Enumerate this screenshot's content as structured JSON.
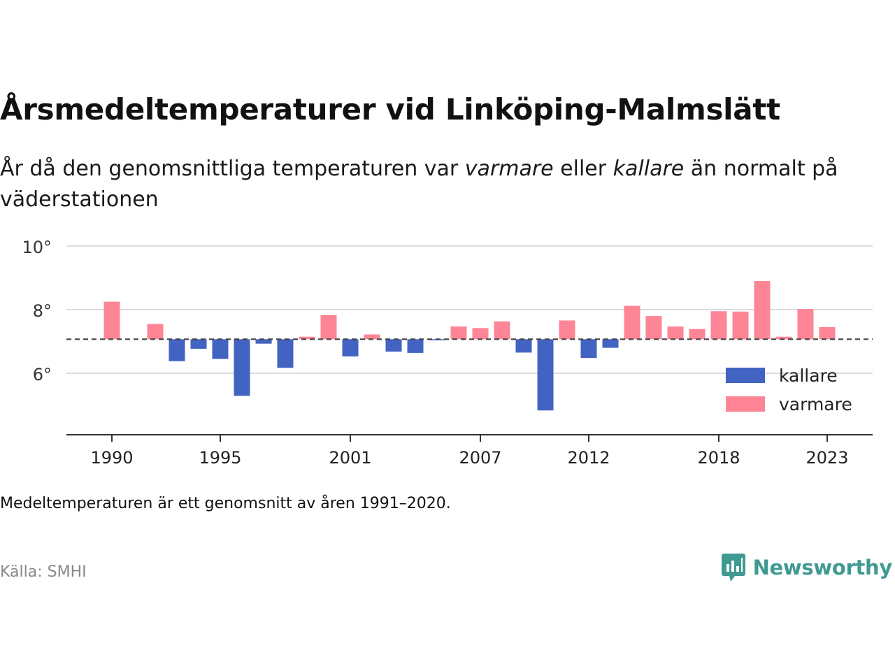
{
  "header": {
    "title": "Årsmedeltemperaturer vid Linköping-Malmslätt",
    "subtitle_prefix": "År då den genomsnittliga temperaturen var ",
    "subtitle_warm_word": "varmare",
    "subtitle_middle": " eller ",
    "subtitle_cold_word": "kallare",
    "subtitle_suffix": " än normalt på väderstationen"
  },
  "footer": {
    "note": "Medeltemperaturen är ett genomsnitt av åren 1991–2020.",
    "source": "Källa: SMHI",
    "brand": "Newsworthy"
  },
  "colors": {
    "kallare": "#4263c1",
    "varmare": "#fd8596",
    "grid": "#dddddd",
    "reference_line": "#444444",
    "axis": "#333333",
    "brand": "#3f9a91"
  },
  "chart_data": {
    "type": "bar",
    "baseline": 7.07,
    "ylim": [
      4.2,
      10.0
    ],
    "yticks": [
      6,
      8,
      10
    ],
    "ytick_labels": [
      "6°",
      "8°",
      "10°"
    ],
    "xticks": [
      1990,
      1995,
      2001,
      2007,
      2012,
      2018,
      2023
    ],
    "xtick_labels": [
      "1990",
      "1995",
      "2001",
      "2007",
      "2012",
      "2018",
      "2023"
    ],
    "x_range": [
      1988,
      2025
    ],
    "grid": true,
    "legend_position": "right",
    "legend": [
      {
        "key": "kallare",
        "label": "kallare"
      },
      {
        "key": "varmare",
        "label": "varmare"
      }
    ],
    "years": [
      1990,
      1991,
      1992,
      1993,
      1994,
      1995,
      1996,
      1997,
      1998,
      1999,
      2000,
      2001,
      2002,
      2003,
      2004,
      2005,
      2006,
      2007,
      2008,
      2009,
      2010,
      2011,
      2012,
      2013,
      2014,
      2015,
      2016,
      2017,
      2018,
      2019,
      2020,
      2021,
      2022,
      2023
    ],
    "values": [
      8.25,
      null,
      7.55,
      6.38,
      6.77,
      6.45,
      5.29,
      6.93,
      6.17,
      7.15,
      7.83,
      6.53,
      7.22,
      6.68,
      6.64,
      7.05,
      7.47,
      7.42,
      7.63,
      6.65,
      4.83,
      7.66,
      6.48,
      6.8,
      8.12,
      7.8,
      7.47,
      7.39,
      7.95,
      7.94,
      8.9,
      7.15,
      8.02,
      7.45
    ]
  }
}
